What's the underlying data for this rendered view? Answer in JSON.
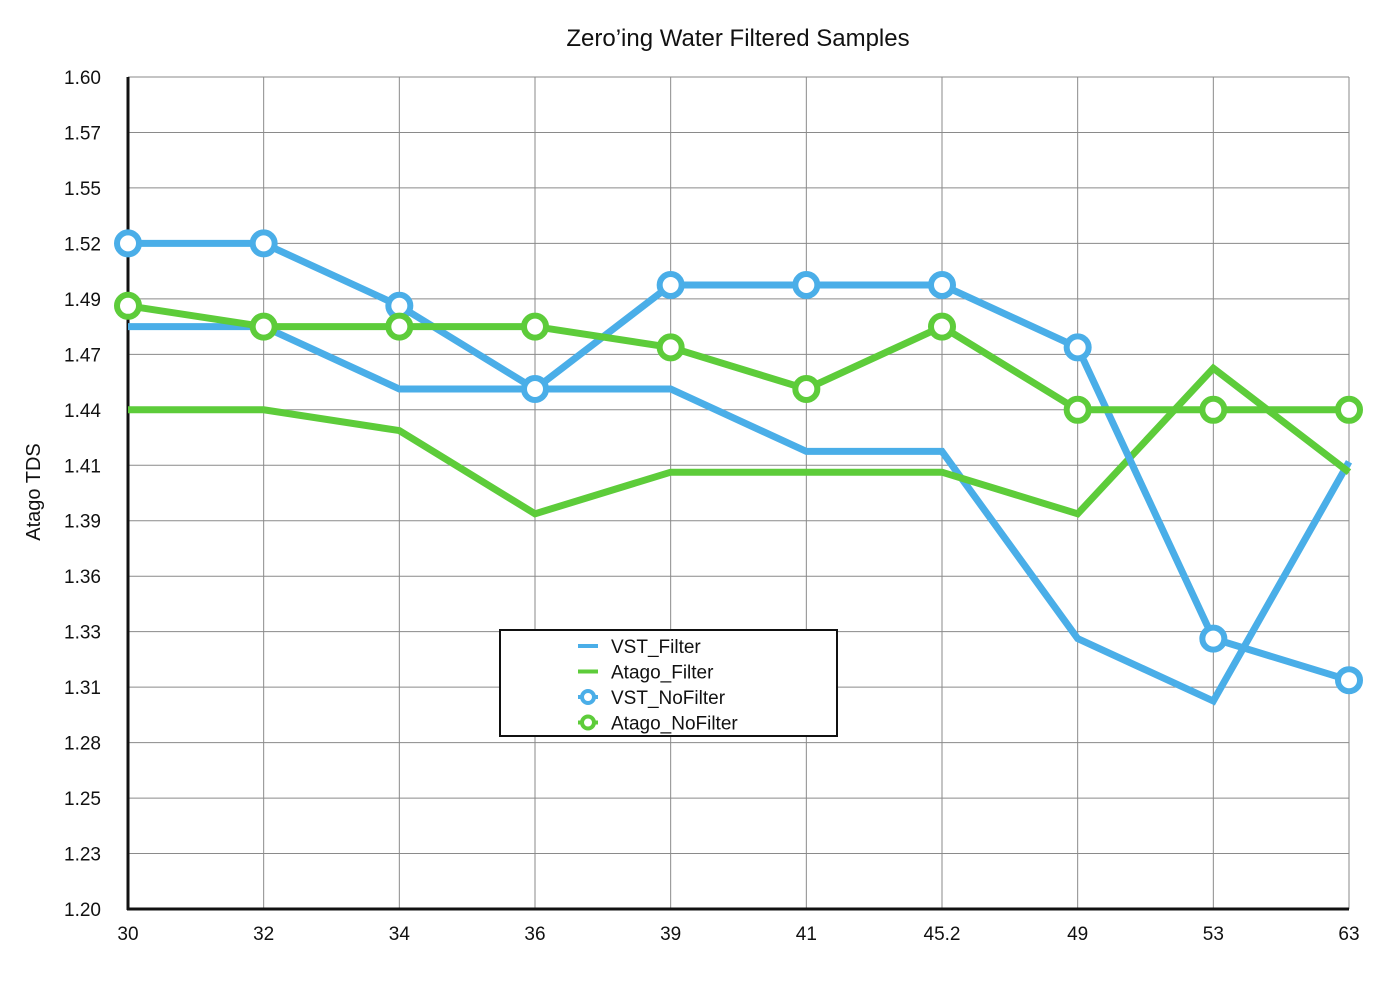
{
  "chart_data": {
    "type": "line",
    "title": "Zero’ing Water Filtered Samples",
    "xlabel": "",
    "ylabel": "Atago TDS",
    "categories": [
      "30",
      "32",
      "34",
      "36",
      "39",
      "41",
      "45.2",
      "49",
      "53",
      "63"
    ],
    "y_ticks": [
      "1.20",
      "1.23",
      "1.25",
      "1.28",
      "1.31",
      "1.33",
      "1.36",
      "1.39",
      "1.41",
      "1.44",
      "1.47",
      "1.49",
      "1.52",
      "1.55",
      "1.57",
      "1.60"
    ],
    "ylim": [
      1.2,
      1.6
    ],
    "grid": true,
    "legend_position": "center",
    "series": [
      {
        "name": "VST_Filter",
        "color": "#4aaee8",
        "marker": "none",
        "values": [
          1.48,
          1.48,
          1.45,
          1.45,
          1.45,
          1.42,
          1.42,
          1.33,
          1.3,
          1.415
        ]
      },
      {
        "name": "Atago_Filter",
        "color": "#5dcc3a",
        "marker": "none",
        "values": [
          1.44,
          1.44,
          1.43,
          1.39,
          1.41,
          1.41,
          1.41,
          1.39,
          1.46,
          1.41
        ]
      },
      {
        "name": "VST_NoFilter",
        "color": "#4aaee8",
        "marker": "circle",
        "values": [
          1.52,
          1.52,
          1.49,
          1.45,
          1.5,
          1.5,
          1.5,
          1.47,
          1.33,
          1.31
        ]
      },
      {
        "name": "Atago_NoFilter",
        "color": "#5dcc3a",
        "marker": "circle",
        "values": [
          1.49,
          1.48,
          1.48,
          1.48,
          1.47,
          1.45,
          1.48,
          1.44,
          1.44,
          1.44
        ]
      }
    ]
  }
}
